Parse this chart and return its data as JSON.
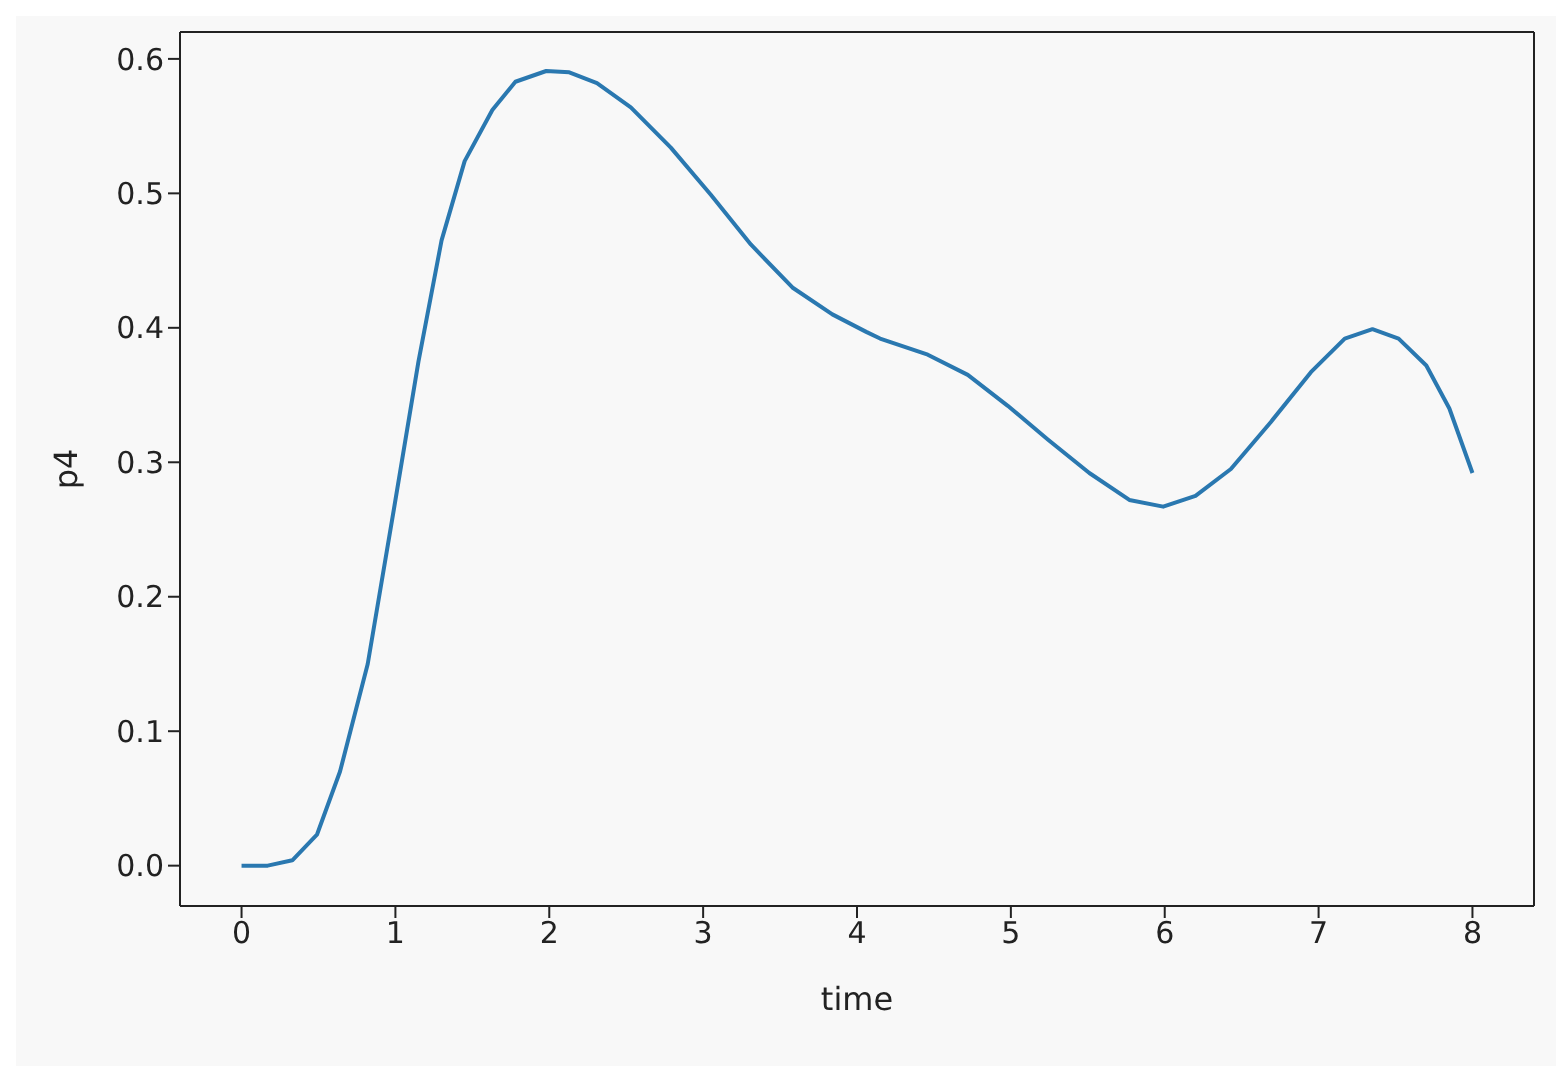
{
  "chart_data": {
    "type": "line",
    "xlabel": "time",
    "ylabel": "p4",
    "x": [
      0,
      0.17,
      0.33,
      0.49,
      0.64,
      0.82,
      0.99,
      1.15,
      1.3,
      1.45,
      1.63,
      1.78,
      1.98,
      2.13,
      2.31,
      2.53,
      2.79,
      3.05,
      3.31,
      3.58,
      3.84,
      4.06,
      4.15,
      4.46,
      4.72,
      4.98,
      5.24,
      5.51,
      5.77,
      5.99,
      6.2,
      6.43,
      6.69,
      6.95,
      7.17,
      7.35,
      7.52,
      7.7,
      7.85,
      8.0
    ],
    "series": [
      {
        "color": "#2a78b0",
        "values": [
          0,
          0,
          0.004,
          0.023,
          0.07,
          0.15,
          0.265,
          0.375,
          0.465,
          0.524,
          0.562,
          0.583,
          0.591,
          0.59,
          0.582,
          0.564,
          0.534,
          0.499,
          0.462,
          0.43,
          0.41,
          0.397,
          0.392,
          0.38,
          0.365,
          0.342,
          0.317,
          0.292,
          0.272,
          0.267,
          0.275,
          0.295,
          0.33,
          0.367,
          0.392,
          0.399,
          0.392,
          0.372,
          0.34,
          0.292
        ]
      }
    ],
    "xlim": [
      -0.4,
      8.4
    ],
    "xticks": [
      0,
      1,
      2,
      3,
      4,
      5,
      6,
      7,
      8
    ],
    "ylim": [
      -0.03,
      0.62
    ],
    "yticks": [
      {
        "value": 0,
        "label": "0.0"
      },
      0.1,
      0.2,
      0.3,
      0.4,
      0.5,
      0.6
    ],
    "marker": "none",
    "line_style": "solid"
  }
}
